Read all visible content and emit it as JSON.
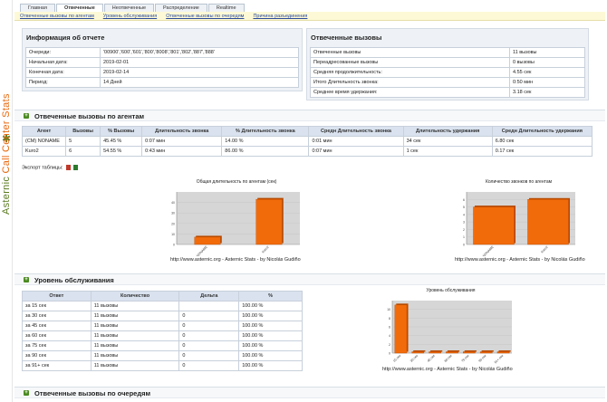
{
  "sidebar": {
    "brand_part1": "Asternic",
    "brand_part2": "Call Center Stats"
  },
  "tabs": [
    "Главная",
    "Отвеченные",
    "Неотвеченные",
    "Распределение",
    "Realtime"
  ],
  "subnav": [
    "Отвеченные вызовы по агентам",
    "Уровень обслуживания",
    "Отвеченные вызовы по очередям",
    "Причина разъединения"
  ],
  "report_info": {
    "title": "Информация об отчете",
    "rows": [
      {
        "label": "Очереди:",
        "value": "'00900','600','601','800','8008','801','802','887','888'"
      },
      {
        "label": "Начальная дата:",
        "value": "2019-02-01"
      },
      {
        "label": "Конечная дата:",
        "value": "2019-02-14"
      },
      {
        "label": "Период:",
        "value": "14 Дней"
      }
    ]
  },
  "answered_summary": {
    "title": "Отвеченные вызовы",
    "rows": [
      {
        "label": "Отвеченные вызовы",
        "value": "11 вызовы"
      },
      {
        "label": "Переадресованные вызовы",
        "value": "0 вызовы"
      },
      {
        "label": "Средняя продолжительность:",
        "value": "4.55 сек"
      },
      {
        "label": "Итого Длительность звонка:",
        "value": "0:50 мин"
      },
      {
        "label": "Среднее время удержания:",
        "value": "3.18 сек"
      }
    ]
  },
  "agents_section": {
    "title": "Отвеченные вызовы по агентам",
    "headers": [
      "Агент",
      "Вызовы",
      "% Вызовы",
      "Длительность звонка",
      "% Длительность звонка",
      "Средн Длительность звонка",
      "Длительность удержания",
      "Средн Длительность удержания"
    ],
    "rows": [
      [
        "(CM) NONAME",
        "5",
        "45.45 %",
        "0:07 мин",
        "14.00 %",
        "0:01 мин",
        "34 сек",
        "6.80 сек"
      ],
      [
        "Kuro2",
        "6",
        "54.55 %",
        "0:43 мин",
        "86.00 %",
        "0:07 мин",
        "1 сек",
        "0.17 сек"
      ]
    ],
    "export_label": "Экспорт таблицы:"
  },
  "charts": {
    "credit": "http://www.asternic.org - Asternic Stats - by Nicolás Gudiño"
  },
  "chart_data": [
    {
      "type": "bar",
      "title": "Общая длительность по агентам (сек)",
      "categories": [
        "(CM) NONAME",
        "Kuro2"
      ],
      "values": [
        7,
        43
      ],
      "ylim": [
        0,
        50
      ],
      "yticks": [
        "0",
        "10",
        "20",
        "30",
        "40"
      ]
    },
    {
      "type": "bar",
      "title": "Количество звонков по агентам",
      "categories": [
        "(CM) NONAME",
        "Kuro2"
      ],
      "values": [
        5,
        6
      ],
      "ylim": [
        0,
        7
      ],
      "yticks": [
        "0",
        "1",
        "2",
        "3",
        "4",
        "5",
        "6"
      ]
    },
    {
      "type": "bar",
      "title": "Уровень обслуживания",
      "categories": [
        "15 сек",
        "30 сек",
        "45 сек",
        "60 сек",
        "75 сек",
        "90 сек",
        "91+ сек"
      ],
      "values": [
        11,
        0,
        0,
        0,
        0,
        0,
        0
      ],
      "ylim": [
        0,
        12
      ],
      "yticks": [
        "0",
        "2",
        "4",
        "6",
        "8",
        "10"
      ]
    }
  ],
  "service_section": {
    "title": "Уровень обслуживания",
    "headers": [
      "Ответ",
      "Количество",
      "Дельта",
      "%"
    ],
    "rows": [
      [
        "за 15 сек",
        "11 вызовы",
        "",
        "100.00 %"
      ],
      [
        "за 30 сек",
        "11 вызовы",
        "0",
        "100.00 %"
      ],
      [
        "за 45 сек",
        "11 вызовы",
        "0",
        "100.00 %"
      ],
      [
        "за 60 сек",
        "11 вызовы",
        "0",
        "100.00 %"
      ],
      [
        "за 75 сек",
        "11 вызовы",
        "0",
        "100.00 %"
      ],
      [
        "за 90 сек",
        "11 вызовы",
        "0",
        "100.00 %"
      ],
      [
        "за 91+ сек",
        "11 вызовы",
        "0",
        "100.00 %"
      ]
    ]
  },
  "queues_section": {
    "title": "Отвеченные вызовы по очередям"
  },
  "colors": {
    "bar": "#f26b0a",
    "bar_dark": "#b84a00",
    "plot_bg": "#d6d6d6"
  }
}
